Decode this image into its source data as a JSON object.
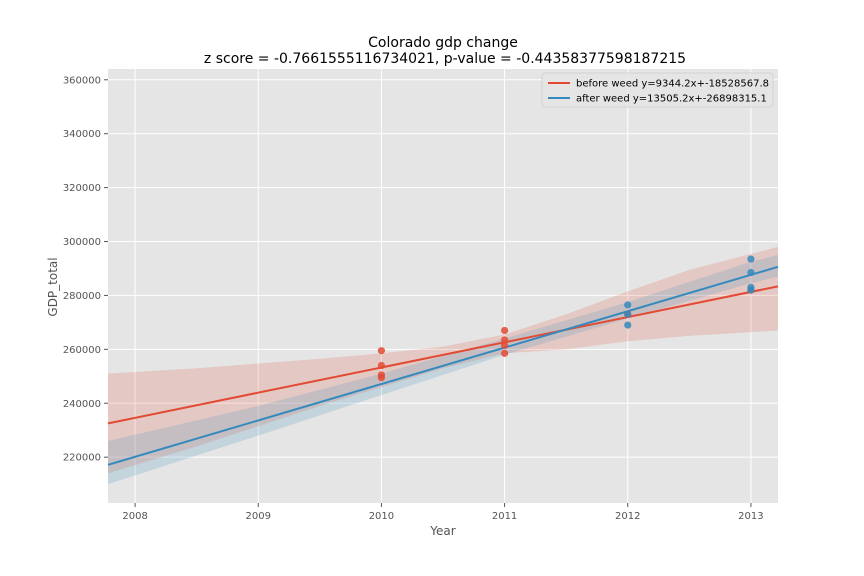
{
  "chart_data": {
    "type": "scatter",
    "title": "Colorado gdp change",
    "subtitle": "z score = -0.7661555116734021, p-value = -0.44358377598187215",
    "xlabel": "Year",
    "ylabel": "GDP_total",
    "xlim": [
      2007.78,
      2013.22
    ],
    "ylim": [
      203000,
      364000
    ],
    "x_ticks": [
      2008,
      2009,
      2010,
      2011,
      2012,
      2013
    ],
    "y_ticks": [
      220000,
      240000,
      260000,
      280000,
      300000,
      320000,
      340000,
      360000
    ],
    "x_tick_labels": [
      "2008",
      "2009",
      "2010",
      "2011",
      "2012",
      "2013"
    ],
    "y_tick_labels": [
      "220000",
      "240000",
      "260000",
      "280000",
      "300000",
      "320000",
      "340000",
      "360000"
    ],
    "grid": true,
    "legend_position": "top-right",
    "series": [
      {
        "name": "before weed y=9344.2x+-18528567.8",
        "color": "#e24a33",
        "points": [
          {
            "x": 2010,
            "y": 259500
          },
          {
            "x": 2010,
            "y": 254000
          },
          {
            "x": 2010,
            "y": 250500
          },
          {
            "x": 2010,
            "y": 249500
          },
          {
            "x": 2011,
            "y": 267000
          },
          {
            "x": 2011,
            "y": 263500
          },
          {
            "x": 2011,
            "y": 261500
          },
          {
            "x": 2011,
            "y": 258500
          },
          {
            "x": 2012,
            "y": 273000
          },
          {
            "x": 2013,
            "y": 282000
          }
        ],
        "regression": {
          "slope": 9344.2,
          "intercept": -18528567.8
        },
        "ci_band": [
          {
            "x": 2007.78,
            "lower": 214000,
            "upper": 251000
          },
          {
            "x": 2008.5,
            "lower": 224000,
            "upper": 253000
          },
          {
            "x": 2009.5,
            "lower": 239000,
            "upper": 256500
          },
          {
            "x": 2010.0,
            "lower": 246000,
            "upper": 258500
          },
          {
            "x": 2010.5,
            "lower": 253000,
            "upper": 261000
          },
          {
            "x": 2011.0,
            "lower": 258500,
            "upper": 265500
          },
          {
            "x": 2011.5,
            "lower": 260000,
            "upper": 273000
          },
          {
            "x": 2012.0,
            "lower": 263000,
            "upper": 281500
          },
          {
            "x": 2012.5,
            "lower": 265000,
            "upper": 289500
          },
          {
            "x": 2013.22,
            "lower": 267000,
            "upper": 298000
          }
        ]
      },
      {
        "name": "after weed y=13505.2x+-26898315.1",
        "color": "#348abd",
        "points": [
          {
            "x": 2012,
            "y": 276500
          },
          {
            "x": 2012,
            "y": 273000
          },
          {
            "x": 2012,
            "y": 269000
          },
          {
            "x": 2013,
            "y": 293500
          },
          {
            "x": 2013,
            "y": 288500
          },
          {
            "x": 2013,
            "y": 283000
          },
          {
            "x": 2013,
            "y": 282000
          }
        ],
        "regression": {
          "slope": 13505.2,
          "intercept": -26898315.1
        },
        "ci_band": [
          {
            "x": 2007.78,
            "lower": 210000,
            "upper": 226000
          },
          {
            "x": 2009.0,
            "lower": 228000,
            "upper": 239000
          },
          {
            "x": 2010.0,
            "lower": 243000,
            "upper": 251000
          },
          {
            "x": 2011.0,
            "lower": 258000,
            "upper": 264000
          },
          {
            "x": 2012.0,
            "lower": 271500,
            "upper": 277500
          },
          {
            "x": 2013.0,
            "lower": 284500,
            "upper": 292500
          },
          {
            "x": 2013.22,
            "lower": 287000,
            "upper": 295000
          }
        ]
      }
    ]
  }
}
